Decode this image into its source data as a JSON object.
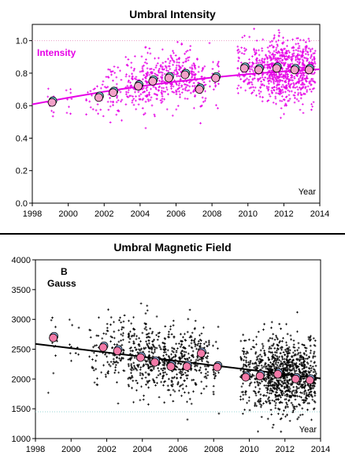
{
  "chart_data": [
    {
      "type": "scatter",
      "title": "Umbral Intensity",
      "annotation": "Intensity",
      "xlabel": "Year",
      "ylabel": "",
      "xlim": [
        1998,
        2014
      ],
      "ylim": [
        0.0,
        1.1
      ],
      "x_ticks": [
        "1998",
        "2000",
        "2002",
        "2004",
        "2006",
        "2008",
        "2010",
        "2012",
        "2014"
      ],
      "y_ticks": [
        "0.0",
        "0.2",
        "0.4",
        "0.6",
        "0.8",
        "1.0"
      ],
      "reference_line": 1.0,
      "colors": {
        "points": "#e600e6",
        "fit": "#e600e6",
        "means": "#f2a0c8",
        "means_alt": "#7fd8ea",
        "reference": "#e9a0c8"
      },
      "fit_curve": {
        "x": [
          1998.0,
          2000.0,
          2002.0,
          2004.0,
          2006.0,
          2008.0,
          2010.0,
          2012.0,
          2014.0
        ],
        "y": [
          0.608,
          0.649,
          0.686,
          0.719,
          0.748,
          0.773,
          0.794,
          0.811,
          0.824
        ]
      },
      "clusters": [
        {
          "x": 1999.0,
          "spread": 0.25,
          "n": 10,
          "mean": 0.63,
          "sd": 0.06
        },
        {
          "x": 2000.0,
          "spread": 0.2,
          "n": 8,
          "mean": 0.64,
          "sd": 0.06
        },
        {
          "x": 2001.5,
          "spread": 0.5,
          "n": 25,
          "mean": 0.66,
          "sd": 0.07
        },
        {
          "x": 2002.5,
          "spread": 0.5,
          "n": 50,
          "mean": 0.69,
          "sd": 0.08
        },
        {
          "x": 2003.8,
          "spread": 0.6,
          "n": 110,
          "mean": 0.73,
          "sd": 0.08
        },
        {
          "x": 2004.8,
          "spread": 0.5,
          "n": 90,
          "mean": 0.74,
          "sd": 0.08
        },
        {
          "x": 2005.7,
          "spread": 0.55,
          "n": 110,
          "mean": 0.77,
          "sd": 0.08
        },
        {
          "x": 2006.6,
          "spread": 0.45,
          "n": 90,
          "mean": 0.79,
          "sd": 0.08
        },
        {
          "x": 2007.3,
          "spread": 0.35,
          "n": 60,
          "mean": 0.72,
          "sd": 0.08
        },
        {
          "x": 2008.1,
          "spread": 0.3,
          "n": 25,
          "mean": 0.77,
          "sd": 0.07
        },
        {
          "x": 2009.8,
          "spread": 0.4,
          "n": 70,
          "mean": 0.83,
          "sd": 0.08
        },
        {
          "x": 2010.6,
          "spread": 0.4,
          "n": 110,
          "mean": 0.82,
          "sd": 0.08
        },
        {
          "x": 2011.6,
          "spread": 0.55,
          "n": 320,
          "mean": 0.81,
          "sd": 0.1
        },
        {
          "x": 2012.6,
          "spread": 0.5,
          "n": 230,
          "mean": 0.81,
          "sd": 0.09
        },
        {
          "x": 2013.4,
          "spread": 0.35,
          "n": 130,
          "mean": 0.81,
          "sd": 0.09
        }
      ],
      "means": [
        {
          "x": 1999.1,
          "y": 0.62
        },
        {
          "x": 2001.7,
          "y": 0.65
        },
        {
          "x": 2002.5,
          "y": 0.68
        },
        {
          "x": 2003.9,
          "y": 0.72
        },
        {
          "x": 2004.7,
          "y": 0.75
        },
        {
          "x": 2005.6,
          "y": 0.77
        },
        {
          "x": 2006.5,
          "y": 0.79
        },
        {
          "x": 2007.3,
          "y": 0.7
        },
        {
          "x": 2008.2,
          "y": 0.77
        },
        {
          "x": 2009.8,
          "y": 0.83
        },
        {
          "x": 2010.6,
          "y": 0.82
        },
        {
          "x": 2011.6,
          "y": 0.83
        },
        {
          "x": 2012.6,
          "y": 0.82
        },
        {
          "x": 2013.4,
          "y": 0.82
        }
      ]
    },
    {
      "type": "scatter",
      "title": "Umbral Magnetic Field",
      "annotation": [
        "B",
        "Gauss"
      ],
      "xlabel": "Year",
      "ylabel": "",
      "xlim": [
        1998,
        2014
      ],
      "ylim": [
        1000,
        4000
      ],
      "x_ticks": [
        "1998",
        "2000",
        "2002",
        "2004",
        "2006",
        "2008",
        "2010",
        "2012",
        "2014"
      ],
      "y_ticks": [
        "1000",
        "1500",
        "2000",
        "2500",
        "3000",
        "3500",
        "4000"
      ],
      "reference_line": 1450,
      "colors": {
        "points": "#000000",
        "fit": "#000000",
        "means": "#f27aa8",
        "means_alt": "#9ab8ea",
        "reference": "#9ad6d6"
      },
      "fit_line": {
        "x": [
          1998.0,
          2014.0
        ],
        "y": [
          2590,
          2010
        ]
      },
      "clusters": [
        {
          "x": 1999.0,
          "spread": 0.3,
          "n": 12,
          "mean": 2600,
          "sd": 250
        },
        {
          "x": 2000.2,
          "spread": 0.3,
          "n": 10,
          "mean": 2550,
          "sd": 250
        },
        {
          "x": 2001.5,
          "spread": 0.5,
          "n": 40,
          "mean": 2500,
          "sd": 280
        },
        {
          "x": 2002.5,
          "spread": 0.5,
          "n": 80,
          "mean": 2470,
          "sd": 300
        },
        {
          "x": 2003.8,
          "spread": 0.6,
          "n": 150,
          "mean": 2400,
          "sd": 320
        },
        {
          "x": 2004.8,
          "spread": 0.5,
          "n": 120,
          "mean": 2300,
          "sd": 300
        },
        {
          "x": 2005.7,
          "spread": 0.55,
          "n": 140,
          "mean": 2250,
          "sd": 300
        },
        {
          "x": 2006.6,
          "spread": 0.45,
          "n": 110,
          "mean": 2220,
          "sd": 300
        },
        {
          "x": 2007.4,
          "spread": 0.35,
          "n": 70,
          "mean": 2350,
          "sd": 280
        },
        {
          "x": 2008.2,
          "spread": 0.25,
          "n": 20,
          "mean": 2250,
          "sd": 250
        },
        {
          "x": 2009.9,
          "spread": 0.4,
          "n": 90,
          "mean": 2150,
          "sd": 280
        },
        {
          "x": 2010.7,
          "spread": 0.4,
          "n": 140,
          "mean": 2100,
          "sd": 290
        },
        {
          "x": 2011.6,
          "spread": 0.55,
          "n": 380,
          "mean": 2080,
          "sd": 320
        },
        {
          "x": 2012.6,
          "spread": 0.5,
          "n": 280,
          "mean": 2050,
          "sd": 300
        },
        {
          "x": 2013.4,
          "spread": 0.35,
          "n": 160,
          "mean": 2030,
          "sd": 290
        }
      ],
      "means": [
        {
          "x": 1999.0,
          "y": 2690
        },
        {
          "x": 2001.8,
          "y": 2530
        },
        {
          "x": 2002.6,
          "y": 2470
        },
        {
          "x": 2003.9,
          "y": 2360
        },
        {
          "x": 2004.7,
          "y": 2280
        },
        {
          "x": 2005.6,
          "y": 2210
        },
        {
          "x": 2006.5,
          "y": 2210
        },
        {
          "x": 2007.3,
          "y": 2430
        },
        {
          "x": 2008.2,
          "y": 2200
        },
        {
          "x": 2009.8,
          "y": 2030
        },
        {
          "x": 2010.6,
          "y": 2050
        },
        {
          "x": 2011.6,
          "y": 2080
        },
        {
          "x": 2012.6,
          "y": 2000
        },
        {
          "x": 2013.4,
          "y": 1980
        }
      ]
    }
  ]
}
